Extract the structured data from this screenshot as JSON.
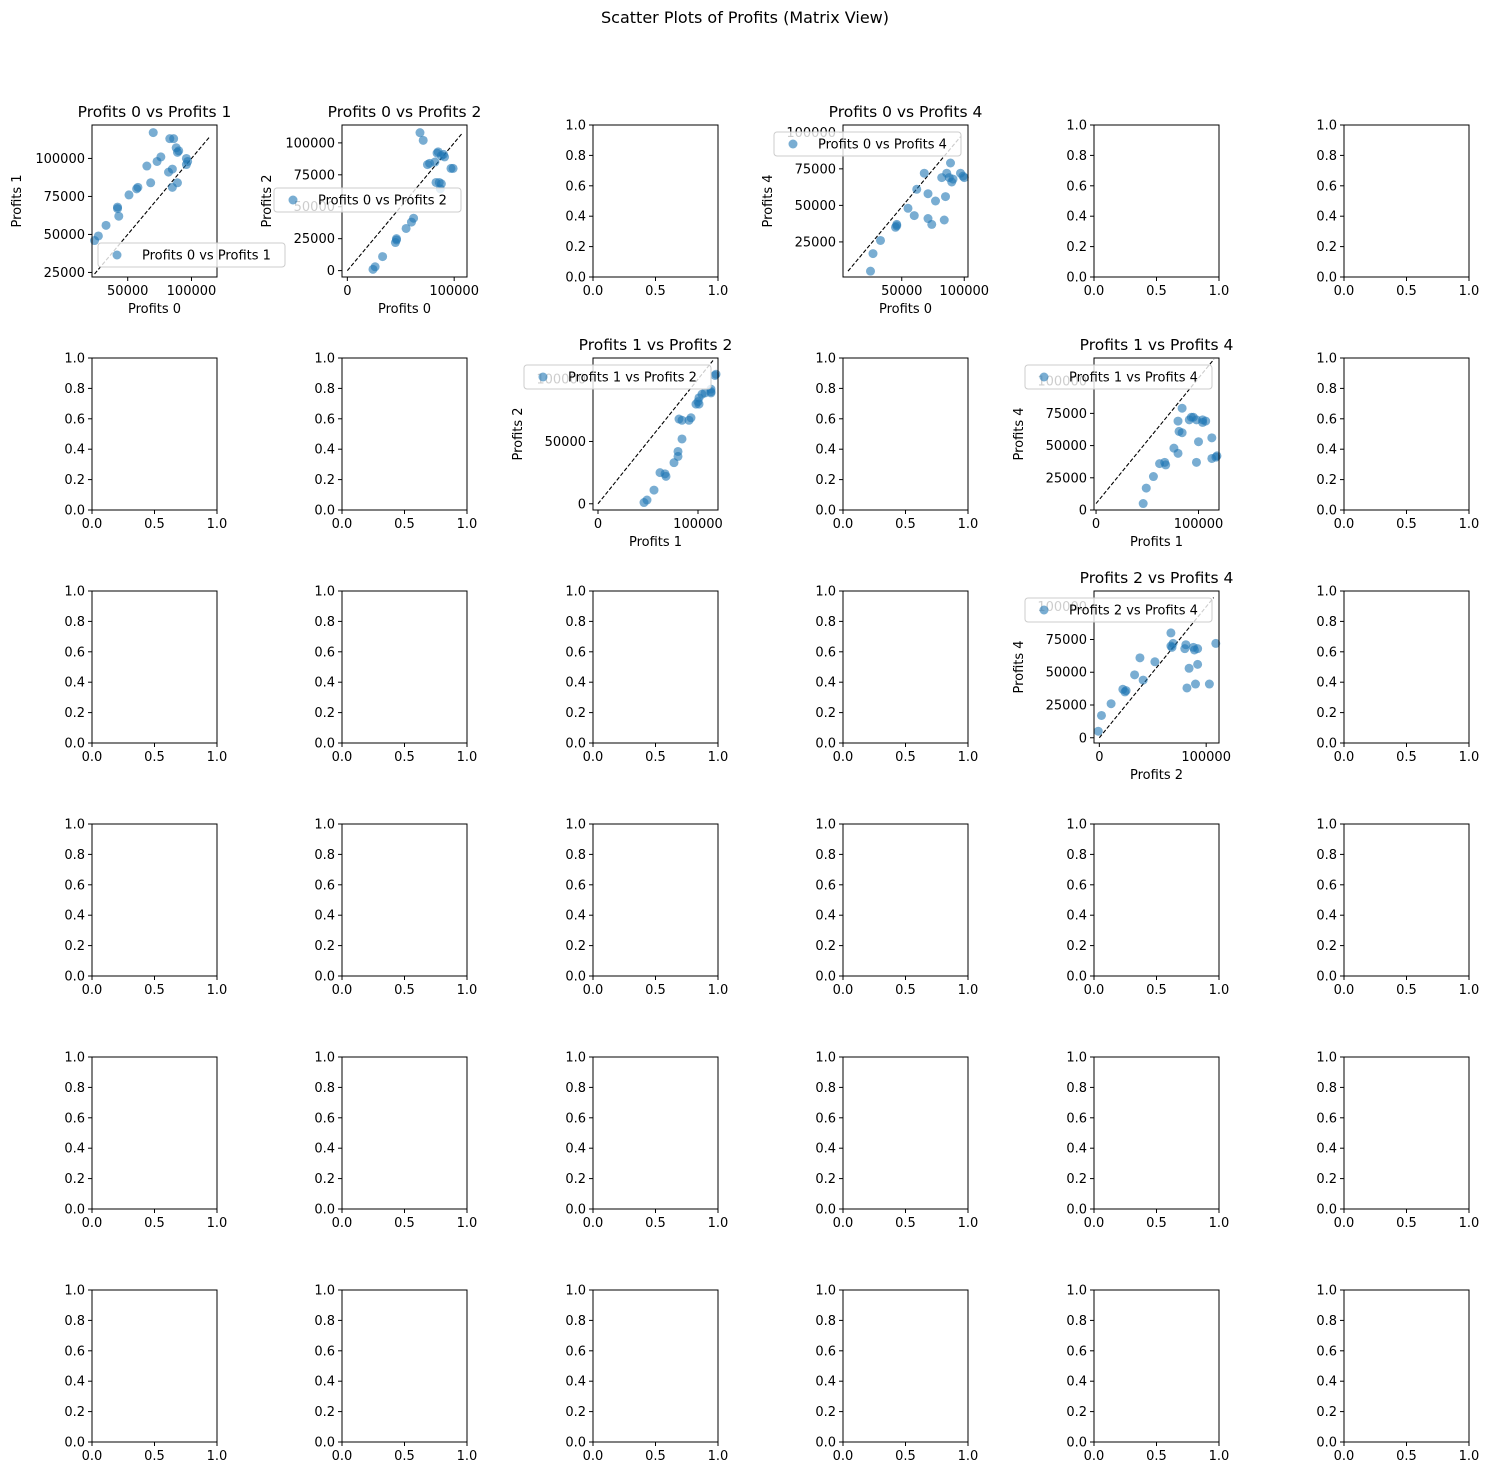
{
  "figure": {
    "suptitle": "Scatter Plots of Profits (Matrix View)"
  },
  "colors": {
    "point": "#1f77b4",
    "axis": "#000000",
    "diagonal": "#000000",
    "legend_border": "#cccccc"
  },
  "grid": {
    "rows": 6,
    "cols": 6
  },
  "default_ticks": [
    "0.0",
    "0.2",
    "0.4",
    "0.6",
    "0.8",
    "1.0"
  ],
  "default_xticks": [
    "0.0",
    "0.5",
    "1.0"
  ],
  "chart_data": [
    {
      "type": "scatter",
      "row": 0,
      "col": 0,
      "title": "Profits 0 vs Profits 1",
      "xlabel": "Profits 0",
      "ylabel": "Profits 1",
      "legend": "Profits 0 vs Profits 1",
      "legend_placement": "lower-right",
      "xlim": [
        22000,
        120000
      ],
      "ylim": [
        22000,
        122000
      ],
      "xticks": [
        50000,
        100000
      ],
      "yticks": [
        25000,
        50000,
        75000,
        100000
      ],
      "diagonal": [
        [
          24000,
          24000
        ],
        [
          114000,
          114000
        ]
      ],
      "points": [
        [
          24000,
          46000
        ],
        [
          27000,
          49000
        ],
        [
          33000,
          56000
        ],
        [
          42000,
          67000
        ],
        [
          42000,
          68000
        ],
        [
          43000,
          62000
        ],
        [
          51000,
          76000
        ],
        [
          57000,
          80000
        ],
        [
          58000,
          81000
        ],
        [
          65000,
          95000
        ],
        [
          68000,
          84000
        ],
        [
          70000,
          117000
        ],
        [
          73000,
          98000
        ],
        [
          76000,
          101000
        ],
        [
          82000,
          91000
        ],
        [
          83000,
          113000
        ],
        [
          85000,
          81000
        ],
        [
          85000,
          93000
        ],
        [
          86000,
          113000
        ],
        [
          88000,
          107000
        ],
        [
          89000,
          104000
        ],
        [
          89000,
          84000
        ],
        [
          90000,
          105000
        ],
        [
          96000,
          96000
        ],
        [
          96000,
          100000
        ],
        [
          97000,
          98000
        ]
      ]
    },
    {
      "type": "scatter",
      "row": 0,
      "col": 1,
      "title": "Profits 0 vs Profits 2",
      "xlabel": "Profits 0",
      "ylabel": "Profits 2",
      "legend": "Profits 0 vs Profits 2",
      "legend_placement": "center",
      "xlim": [
        -5000,
        112000
      ],
      "ylim": [
        -5000,
        114000
      ],
      "xticks": [
        0,
        100000
      ],
      "yticks": [
        0,
        25000,
        50000,
        75000,
        100000
      ],
      "diagonal": [
        [
          0,
          0
        ],
        [
          107000,
          107000
        ]
      ],
      "points": [
        [
          24000,
          1000
        ],
        [
          26000,
          3000
        ],
        [
          33000,
          11000
        ],
        [
          45000,
          22000
        ],
        [
          46000,
          24000
        ],
        [
          46000,
          25000
        ],
        [
          55000,
          33000
        ],
        [
          60000,
          38000
        ],
        [
          62000,
          41000
        ],
        [
          68000,
          108000
        ],
        [
          71000,
          102000
        ],
        [
          75000,
          83000
        ],
        [
          77000,
          84000
        ],
        [
          82000,
          85000
        ],
        [
          83000,
          69000
        ],
        [
          84000,
          92000
        ],
        [
          85000,
          93000
        ],
        [
          86000,
          69000
        ],
        [
          87000,
          64000
        ],
        [
          88000,
          90000
        ],
        [
          88000,
          68000
        ],
        [
          90000,
          91000
        ],
        [
          91000,
          89000
        ],
        [
          97000,
          80000
        ],
        [
          99000,
          80000
        ]
      ]
    },
    {
      "type": "scatter",
      "row": 0,
      "col": 3,
      "title": "Profits 0 vs Profits 4",
      "xlabel": "Profits 0",
      "ylabel": "Profits 4",
      "legend": "Profits 0 vs Profits 4",
      "legend_placement": "upper-left",
      "xlim": [
        3000,
        103000
      ],
      "ylim": [
        1000,
        105000
      ],
      "xticks": [
        50000,
        100000
      ],
      "yticks": [
        25000,
        50000,
        75000,
        100000
      ],
      "diagonal": [
        [
          7000,
          5000
        ],
        [
          97000,
          97000
        ]
      ],
      "points": [
        [
          25000,
          5000
        ],
        [
          27000,
          17000
        ],
        [
          33000,
          26000
        ],
        [
          45000,
          35000
        ],
        [
          46000,
          36000
        ],
        [
          46000,
          37000
        ],
        [
          55000,
          48000
        ],
        [
          60000,
          43000
        ],
        [
          62000,
          61000
        ],
        [
          68000,
          72000
        ],
        [
          71000,
          41000
        ],
        [
          71000,
          58000
        ],
        [
          74000,
          37000
        ],
        [
          77000,
          53000
        ],
        [
          82000,
          69000
        ],
        [
          84000,
          40000
        ],
        [
          85000,
          56000
        ],
        [
          86000,
          72000
        ],
        [
          88000,
          69000
        ],
        [
          89000,
          79000
        ],
        [
          90000,
          66000
        ],
        [
          91000,
          68000
        ],
        [
          97000,
          72000
        ],
        [
          99000,
          70000
        ],
        [
          100000,
          69000
        ]
      ]
    },
    {
      "type": "scatter",
      "row": 1,
      "col": 2,
      "title": "Profits 1 vs Profits 2",
      "xlabel": "Profits 1",
      "ylabel": "Profits 2",
      "legend": "Profits 1 vs Profits 2",
      "legend_placement": "upper-right",
      "xlim": [
        -5000,
        120000
      ],
      "ylim": [
        -5000,
        117000
      ],
      "xticks": [
        0,
        100000
      ],
      "yticks": [
        0,
        50000,
        100000
      ],
      "diagonal": [
        [
          0,
          0
        ],
        [
          115000,
          115000
        ]
      ],
      "points": [
        [
          46000,
          1000
        ],
        [
          49000,
          3000
        ],
        [
          56000,
          11000
        ],
        [
          62000,
          25000
        ],
        [
          67000,
          24000
        ],
        [
          68000,
          22000
        ],
        [
          76000,
          33000
        ],
        [
          80000,
          38000
        ],
        [
          80000,
          42000
        ],
        [
          84000,
          52000
        ],
        [
          81000,
          68000
        ],
        [
          84000,
          67000
        ],
        [
          91000,
          67000
        ],
        [
          93000,
          69000
        ],
        [
          98000,
          80000
        ],
        [
          100000,
          82000
        ],
        [
          101000,
          85000
        ],
        [
          101000,
          80000
        ],
        [
          104000,
          88000
        ],
        [
          107000,
          89000
        ],
        [
          113000,
          92000
        ],
        [
          113000,
          89000
        ],
        [
          113000,
          90000
        ],
        [
          117000,
          103000
        ],
        [
          118000,
          104000
        ]
      ]
    },
    {
      "type": "scatter",
      "row": 1,
      "col": 4,
      "title": "Profits 1 vs Profits 4",
      "xlabel": "Profits 1",
      "ylabel": "Profits 4",
      "legend": "Profits 1 vs Profits 4",
      "legend_placement": "upper-right",
      "xlim": [
        -2000,
        120000
      ],
      "ylim": [
        0,
        118000
      ],
      "xticks": [
        0,
        100000
      ],
      "yticks": [
        0,
        25000,
        50000,
        75000,
        100000
      ],
      "diagonal": [
        [
          0,
          5000
        ],
        [
          115000,
          117000
        ]
      ],
      "points": [
        [
          46000,
          5000
        ],
        [
          49000,
          17000
        ],
        [
          56000,
          26000
        ],
        [
          62000,
          36000
        ],
        [
          67000,
          37000
        ],
        [
          68000,
          35000
        ],
        [
          76000,
          48000
        ],
        [
          80000,
          44000
        ],
        [
          80000,
          69000
        ],
        [
          81000,
          61000
        ],
        [
          84000,
          60000
        ],
        [
          84000,
          79000
        ],
        [
          91000,
          70000
        ],
        [
          93000,
          72000
        ],
        [
          95000,
          72000
        ],
        [
          98000,
          70000
        ],
        [
          98000,
          37000
        ],
        [
          100000,
          53000
        ],
        [
          104000,
          70000
        ],
        [
          104000,
          68000
        ],
        [
          107000,
          69000
        ],
        [
          113000,
          56000
        ],
        [
          113000,
          40000
        ],
        [
          117000,
          41000
        ],
        [
          118000,
          42000
        ]
      ]
    },
    {
      "type": "scatter",
      "row": 2,
      "col": 4,
      "title": "Profits 2 vs Profits 4",
      "xlabel": "Profits 2",
      "ylabel": "Profits 4",
      "legend": "Profits 2 vs Profits 4",
      "legend_placement": "upper-right",
      "xlim": [
        -5000,
        112000
      ],
      "ylim": [
        -4000,
        112000
      ],
      "xticks": [
        0,
        100000
      ],
      "yticks": [
        0,
        25000,
        50000,
        75000,
        100000
      ],
      "diagonal": [
        [
          0,
          0
        ],
        [
          107000,
          107000
        ]
      ],
      "points": [
        [
          -1000,
          5000
        ],
        [
          2000,
          17000
        ],
        [
          11000,
          26000
        ],
        [
          22000,
          37000
        ],
        [
          24000,
          35000
        ],
        [
          25000,
          36000
        ],
        [
          33000,
          48000
        ],
        [
          38000,
          61000
        ],
        [
          41000,
          44000
        ],
        [
          52000,
          58000
        ],
        [
          67000,
          70000
        ],
        [
          67000,
          80000
        ],
        [
          68000,
          69000
        ],
        [
          69000,
          72000
        ],
        [
          80000,
          68000
        ],
        [
          81000,
          71000
        ],
        [
          82000,
          38000
        ],
        [
          84000,
          53000
        ],
        [
          88000,
          69000
        ],
        [
          89000,
          67000
        ],
        [
          90000,
          41000
        ],
        [
          92000,
          56000
        ],
        [
          92000,
          68000
        ],
        [
          103000,
          41000
        ],
        [
          109000,
          72000
        ]
      ]
    }
  ]
}
